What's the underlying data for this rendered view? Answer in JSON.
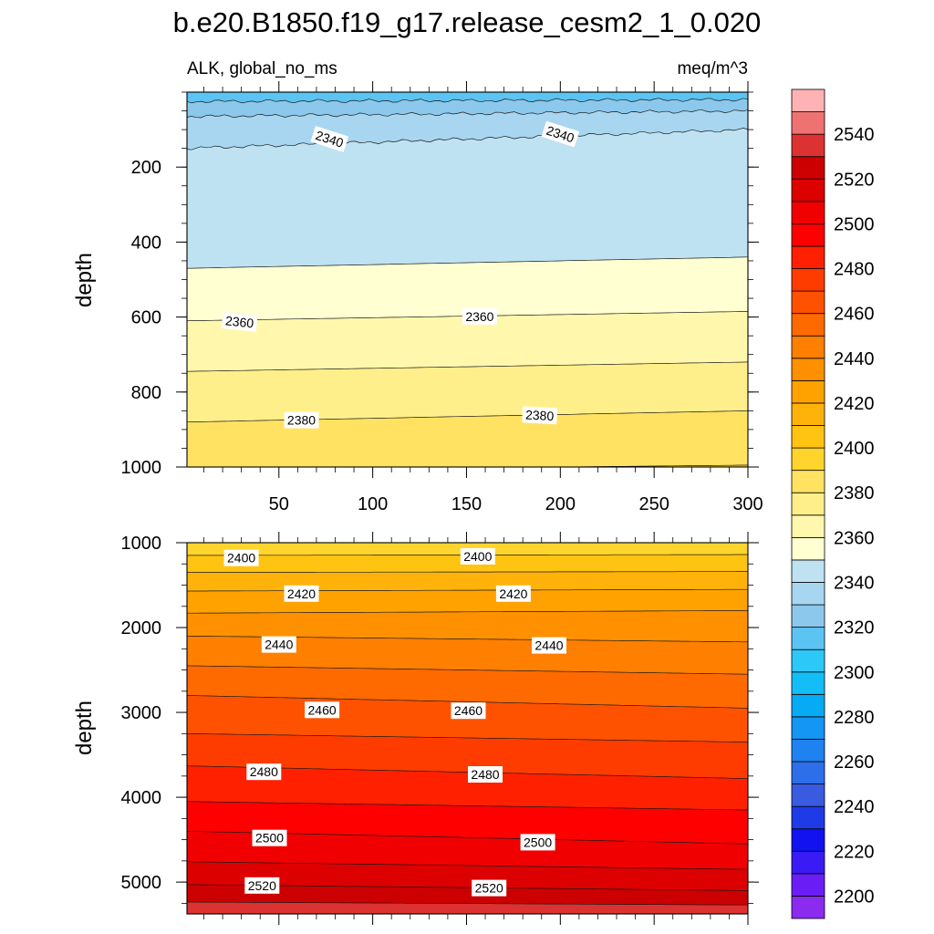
{
  "chart_data": {
    "type": "contour",
    "title": "b.e20.B1850.f19_g17.release_cesm2_1_0.020",
    "variable_label": "ALK, global_no_ms",
    "units_label": "meq/m^3",
    "panels": [
      {
        "name": "upper",
        "xlim": [
          1,
          300
        ],
        "ylim": [
          0,
          1000
        ],
        "y_inverted": true,
        "ylabel": "depth",
        "x_ticks": [
          "50",
          "100",
          "150",
          "200",
          "250",
          "300"
        ],
        "y_ticks": [
          "200",
          "400",
          "600",
          "800",
          "1000"
        ],
        "y_tick_values": [
          200,
          400,
          600,
          800,
          1000
        ],
        "contour_lines": [
          {
            "level": "2320",
            "depth_start": 25,
            "depth_end": 20
          },
          {
            "level": "2330",
            "depth_start": 65,
            "depth_end": 50
          },
          {
            "level": "2340",
            "depth_start": 150,
            "depth_end": 100
          },
          {
            "level": "2350",
            "depth_start": 470,
            "depth_end": 440
          },
          {
            "level": "2360",
            "depth_start": 610,
            "depth_end": 585
          },
          {
            "level": "2370",
            "depth_start": 745,
            "depth_end": 720
          },
          {
            "level": "2380",
            "depth_start": 880,
            "depth_end": 850
          },
          {
            "level": "2390",
            "depth_start": 1010,
            "depth_end": 995
          }
        ],
        "contour_labels": [
          {
            "text": "2340",
            "x": 77,
            "depth": 125,
            "angle": 18
          },
          {
            "text": "2340",
            "x": 200,
            "depth": 112,
            "angle": 18
          },
          {
            "text": "2360",
            "x": 29,
            "depth": 613,
            "angle": 6
          },
          {
            "text": "2360",
            "x": 157,
            "depth": 598,
            "angle": 0
          },
          {
            "text": "2380",
            "x": 62,
            "depth": 875,
            "angle": 0
          },
          {
            "text": "2380",
            "x": 189,
            "depth": 862,
            "angle": 3
          }
        ]
      },
      {
        "name": "lower",
        "xlim": [
          1,
          300
        ],
        "ylim": [
          1000,
          5375
        ],
        "y_inverted": true,
        "ylabel": "depth",
        "y_ticks": [
          "1000",
          "2000",
          "3000",
          "4000",
          "5000"
        ],
        "y_tick_values": [
          1000,
          2000,
          3000,
          4000,
          5000
        ],
        "contour_lines": [
          {
            "level": "2390",
            "depth_start": 1000,
            "depth_end": 1000
          },
          {
            "level": "2400",
            "depth_start": 1150,
            "depth_end": 1140
          },
          {
            "level": "2410",
            "depth_start": 1350,
            "depth_end": 1340
          },
          {
            "level": "2420",
            "depth_start": 1570,
            "depth_end": 1550
          },
          {
            "level": "2430",
            "depth_start": 1830,
            "depth_end": 1800
          },
          {
            "level": "2440",
            "depth_start": 2100,
            "depth_end": 2170
          },
          {
            "level": "2450",
            "depth_start": 2450,
            "depth_end": 2550
          },
          {
            "level": "2460",
            "depth_start": 2800,
            "depth_end": 2950
          },
          {
            "level": "2470",
            "depth_start": 3250,
            "depth_end": 3350
          },
          {
            "level": "2480",
            "depth_start": 3630,
            "depth_end": 3780
          },
          {
            "level": "2490",
            "depth_start": 4050,
            "depth_end": 4150
          },
          {
            "level": "2500",
            "depth_start": 4400,
            "depth_end": 4550
          },
          {
            "level": "2510",
            "depth_start": 4760,
            "depth_end": 4850
          },
          {
            "level": "2520",
            "depth_start": 5030,
            "depth_end": 5100
          },
          {
            "level": "2530",
            "depth_start": 5235,
            "depth_end": 5270
          }
        ],
        "contour_labels": [
          {
            "text": "2400",
            "x": 30,
            "depth": 1180,
            "angle": 0
          },
          {
            "text": "2400",
            "x": 156,
            "depth": 1160,
            "angle": 0
          },
          {
            "text": "2420",
            "x": 62,
            "depth": 1600,
            "angle": 0
          },
          {
            "text": "2420",
            "x": 175,
            "depth": 1600,
            "angle": 0
          },
          {
            "text": "2440",
            "x": 50,
            "depth": 2200,
            "angle": 0
          },
          {
            "text": "2440",
            "x": 194,
            "depth": 2210,
            "angle": 0
          },
          {
            "text": "2460",
            "x": 73,
            "depth": 2970,
            "angle": 0
          },
          {
            "text": "2460",
            "x": 151,
            "depth": 2980,
            "angle": 0
          },
          {
            "text": "2480",
            "x": 42,
            "depth": 3700,
            "angle": 0
          },
          {
            "text": "2480",
            "x": 160,
            "depth": 3730,
            "angle": 0
          },
          {
            "text": "2500",
            "x": 45,
            "depth": 4480,
            "angle": 0
          },
          {
            "text": "2500",
            "x": 188,
            "depth": 4530,
            "angle": 0
          },
          {
            "text": "2520",
            "x": 41,
            "depth": 5040,
            "angle": 0
          },
          {
            "text": "2520",
            "x": 162,
            "depth": 5070,
            "angle": 0
          }
        ]
      }
    ],
    "colorbar": {
      "levels": [
        "2200",
        "2210",
        "2220",
        "2230",
        "2240",
        "2250",
        "2260",
        "2270",
        "2280",
        "2290",
        "2300",
        "2310",
        "2320",
        "2330",
        "2340",
        "2350",
        "2360",
        "2370",
        "2380",
        "2390",
        "2400",
        "2410",
        "2420",
        "2430",
        "2440",
        "2450",
        "2460",
        "2470",
        "2480",
        "2490",
        "2500",
        "2510",
        "2520",
        "2530",
        "2540",
        "2550"
      ],
      "labels": [
        "2200",
        "2220",
        "2240",
        "2260",
        "2280",
        "2300",
        "2320",
        "2340",
        "2360",
        "2380",
        "2400",
        "2420",
        "2440",
        "2460",
        "2480",
        "2500",
        "2520",
        "2540"
      ],
      "colors": [
        "#8B2BF0",
        "#6A1EF5",
        "#3A1AF5",
        "#1212F0",
        "#1F3BE8",
        "#3A5BE0",
        "#2D6FE8",
        "#1E82F0",
        "#1496F5",
        "#06AAF5",
        "#12BEF5",
        "#2CC8F8",
        "#5CC4F2",
        "#8CC8EC",
        "#A8D6F0",
        "#BFE2F2",
        "#FFFFD2",
        "#FFF8AC",
        "#FFEF8A",
        "#FFE262",
        "#FFD42C",
        "#FFC412",
        "#FFB30A",
        "#FFA200",
        "#FF9000",
        "#FF7F00",
        "#FF6A00",
        "#FF5200",
        "#FF3C00",
        "#FF2000",
        "#FF0000",
        "#F00000",
        "#DC0000",
        "#CC0000",
        "#DD3232",
        "#EE7272",
        "#FFB2B4"
      ]
    }
  }
}
